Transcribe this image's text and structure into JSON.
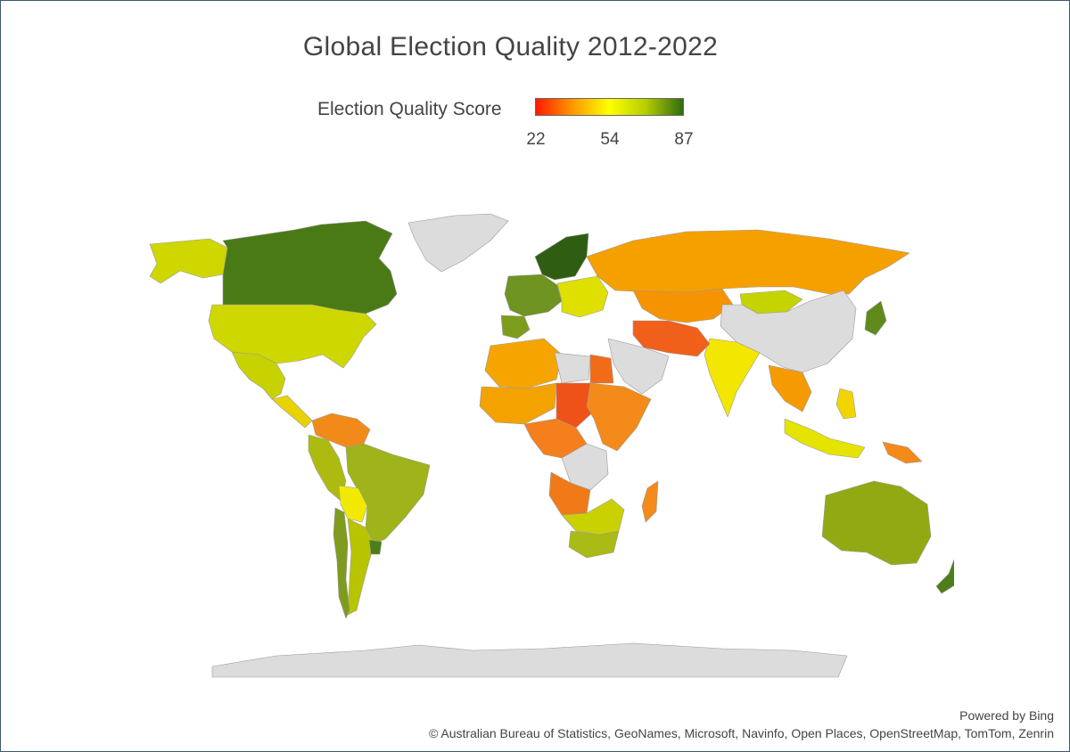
{
  "title": "Global Election Quality 2012-2022",
  "legend": {
    "title": "Election Quality Score",
    "min": "22",
    "mid": "54",
    "max": "87",
    "gradient": [
      "#ff1a00",
      "#ff9900",
      "#ffff00",
      "#b5cc00",
      "#2f6b12"
    ]
  },
  "map": {
    "no_data_color": "#dcdcdc",
    "border_color": "#9a9a9a",
    "regions": [
      {
        "name": "Canada",
        "score": 86,
        "color": "#4a7a16"
      },
      {
        "name": "Alaska",
        "score": 70,
        "color": "#cfd600"
      },
      {
        "name": "United States",
        "score": 68,
        "color": "#cfd700"
      },
      {
        "name": "Greenland",
        "score": null,
        "color": "#dcdcdc"
      },
      {
        "name": "Mexico",
        "score": 67,
        "color": "#c7d200"
      },
      {
        "name": "Central America",
        "score": 50,
        "color": "#e8d300"
      },
      {
        "name": "Venezuela/Colombia north",
        "score": 38,
        "color": "#f28a1a"
      },
      {
        "name": "Brazil",
        "score": 74,
        "color": "#9fb31a"
      },
      {
        "name": "Andes (Peru/Ecuador)",
        "score": 72,
        "color": "#adbb10"
      },
      {
        "name": "Bolivia",
        "score": 55,
        "color": "#f1ea00"
      },
      {
        "name": "Argentina",
        "score": 70,
        "color": "#b8c400"
      },
      {
        "name": "Chile",
        "score": 78,
        "color": "#7f9b1d"
      },
      {
        "name": "Uruguay",
        "score": 84,
        "color": "#4e7e18"
      },
      {
        "name": "Nordics",
        "score": 87,
        "color": "#2f5e12"
      },
      {
        "name": "Western Europe",
        "score": 80,
        "color": "#6f9421"
      },
      {
        "name": "Iberia",
        "score": 79,
        "color": "#7d9c1d"
      },
      {
        "name": "Eastern Europe",
        "score": 62,
        "color": "#dfe000"
      },
      {
        "name": "Russia",
        "score": 43,
        "color": "#f6a000"
      },
      {
        "name": "Kazakhstan/Central Asia",
        "score": 40,
        "color": "#f59300"
      },
      {
        "name": "Mongolia",
        "score": 68,
        "color": "#c5d300"
      },
      {
        "name": "China",
        "score": null,
        "color": "#dcdcdc"
      },
      {
        "name": "Japan",
        "score": 82,
        "color": "#5f8a1c"
      },
      {
        "name": "India",
        "score": 58,
        "color": "#f3e600"
      },
      {
        "name": "Iran/Afghanistan",
        "score": 32,
        "color": "#f0601a"
      },
      {
        "name": "Saudi Arabia",
        "score": null,
        "color": "#dcdcdc"
      },
      {
        "name": "North Africa west",
        "score": 45,
        "color": "#f6a500"
      },
      {
        "name": "Libya",
        "score": null,
        "color": "#dcdcdc"
      },
      {
        "name": "Egypt",
        "score": 33,
        "color": "#f26b18"
      },
      {
        "name": "Sahel",
        "score": 45,
        "color": "#f4a200"
      },
      {
        "name": "Chad",
        "score": 30,
        "color": "#ef5218"
      },
      {
        "name": "Central Africa",
        "score": 38,
        "color": "#f47f1c"
      },
      {
        "name": "DR Congo",
        "score": null,
        "color": "#dcdcdc"
      },
      {
        "name": "East Africa",
        "score": 40,
        "color": "#f48a1a"
      },
      {
        "name": "Angola",
        "score": 36,
        "color": "#f07a18"
      },
      {
        "name": "Southern Africa",
        "score": 66,
        "color": "#c9d200"
      },
      {
        "name": "South Africa",
        "score": 72,
        "color": "#a9bb14"
      },
      {
        "name": "Madagascar",
        "score": 40,
        "color": "#f48a1a"
      },
      {
        "name": "Southeast Asia",
        "score": 42,
        "color": "#f59a00"
      },
      {
        "name": "Indonesia",
        "score": 62,
        "color": "#e5e400"
      },
      {
        "name": "Philippines",
        "score": 55,
        "color": "#f2d400"
      },
      {
        "name": "Papua New Guinea",
        "score": 40,
        "color": "#f48a1a"
      },
      {
        "name": "Australia",
        "score": 76,
        "color": "#93a914"
      },
      {
        "name": "New Zealand",
        "score": 84,
        "color": "#4e7e18"
      },
      {
        "name": "Antarctica",
        "score": null,
        "color": "#dcdcdc"
      }
    ]
  },
  "credits": {
    "powered_by": "Powered by Bing",
    "sources": "© Australian Bureau of Statistics, GeoNames, Microsoft, Navinfo, Open Places, OpenStreetMap, TomTom, Zenrin"
  }
}
